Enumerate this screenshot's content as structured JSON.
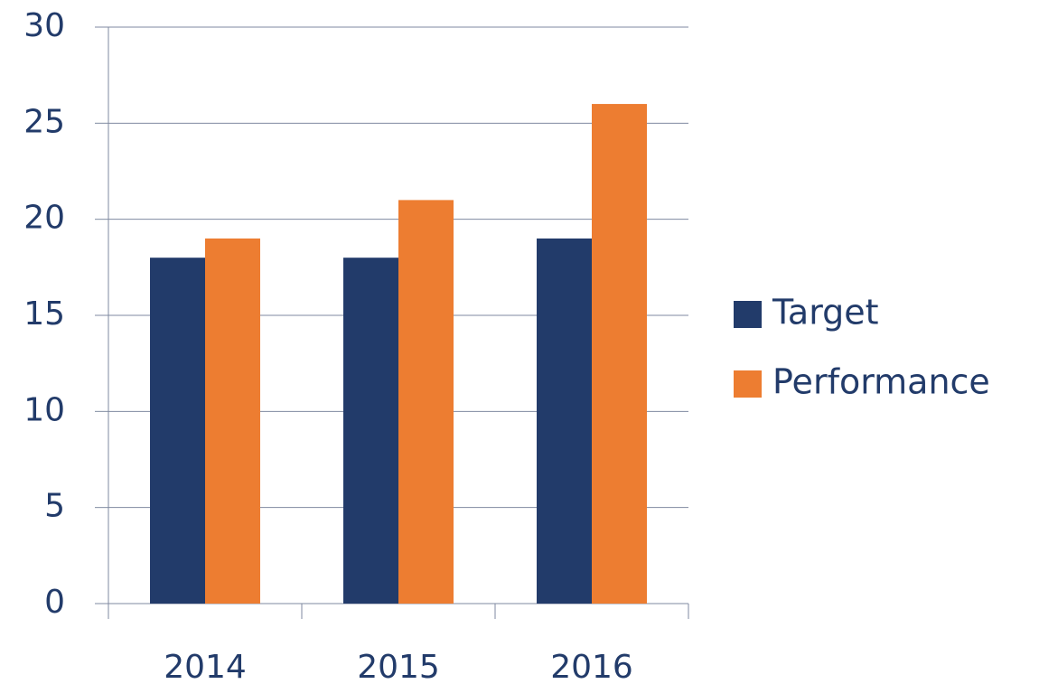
{
  "chart_data": {
    "type": "bar",
    "categories": [
      "2014",
      "2015",
      "2016"
    ],
    "series": [
      {
        "name": "Target",
        "color": "#223b6a",
        "values": [
          18,
          18,
          19
        ]
      },
      {
        "name": "Performance",
        "color": "#ed7d31",
        "values": [
          19,
          21,
          26
        ]
      }
    ],
    "ylim": [
      0,
      30
    ],
    "yticks": [
      0,
      5,
      10,
      15,
      20,
      25,
      30
    ],
    "grid": true,
    "legend": "right"
  }
}
